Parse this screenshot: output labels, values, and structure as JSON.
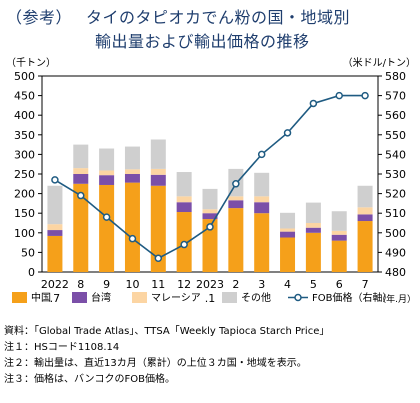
{
  "title": {
    "prefix": "（参考）",
    "line1": "タイのタピオカでん粉の国・地域別",
    "line2": "輸出量および輸出価格の推移"
  },
  "chart_data": {
    "type": "bar",
    "stacked": true,
    "categories": [
      "2022\n.7",
      "8",
      "9",
      "10",
      "11",
      "12",
      "2023\n.1",
      "2",
      "3",
      "4",
      "5",
      "6",
      "7"
    ],
    "x_unit_label": "（年.月）",
    "y_left_label": "（千トン）",
    "y_right_label": "（米ドル/トン）",
    "ylim_left": [
      0,
      500
    ],
    "ylim_right": [
      480,
      580
    ],
    "yticks_left": [
      0,
      50,
      100,
      150,
      200,
      250,
      300,
      350,
      400,
      450,
      500
    ],
    "yticks_right": [
      480,
      490,
      500,
      510,
      520,
      530,
      540,
      550,
      560,
      570,
      580
    ],
    "series": [
      {
        "name": "中国",
        "color": "#f5a01a",
        "values": [
          92,
          225,
          222,
          228,
          220,
          153,
          135,
          163,
          150,
          88,
          100,
          80,
          130
        ]
      },
      {
        "name": "台湾",
        "color": "#7b4fa8",
        "values": [
          15,
          25,
          25,
          22,
          28,
          25,
          15,
          20,
          28,
          15,
          13,
          15,
          17
        ]
      },
      {
        "name": "マレーシア",
        "color": "#fcd5a3",
        "values": [
          15,
          15,
          12,
          12,
          15,
          15,
          10,
          10,
          15,
          8,
          12,
          10,
          18
        ]
      },
      {
        "name": "その他",
        "color": "#cfcfcf",
        "values": [
          98,
          60,
          56,
          58,
          75,
          62,
          52,
          70,
          60,
          40,
          52,
          50,
          55
        ]
      }
    ],
    "line": {
      "name": "FOB価格（右軸）",
      "color": "#1f5b82",
      "values": [
        527,
        519,
        508,
        497,
        487,
        494,
        503,
        525,
        540,
        551,
        566,
        570,
        570
      ]
    },
    "legend_position": "bottom",
    "grid": false
  },
  "notes": [
    "資料：「Global Trade Atlas」、TTSA「Weekly Tapioca Starch Price」",
    "注１：HSコード1108.14",
    "注２：輸出量は、直近13カ月（累計）の上位３カ国・地域を表示。",
    "注３：価格は、バンコクのFOB価格。"
  ]
}
